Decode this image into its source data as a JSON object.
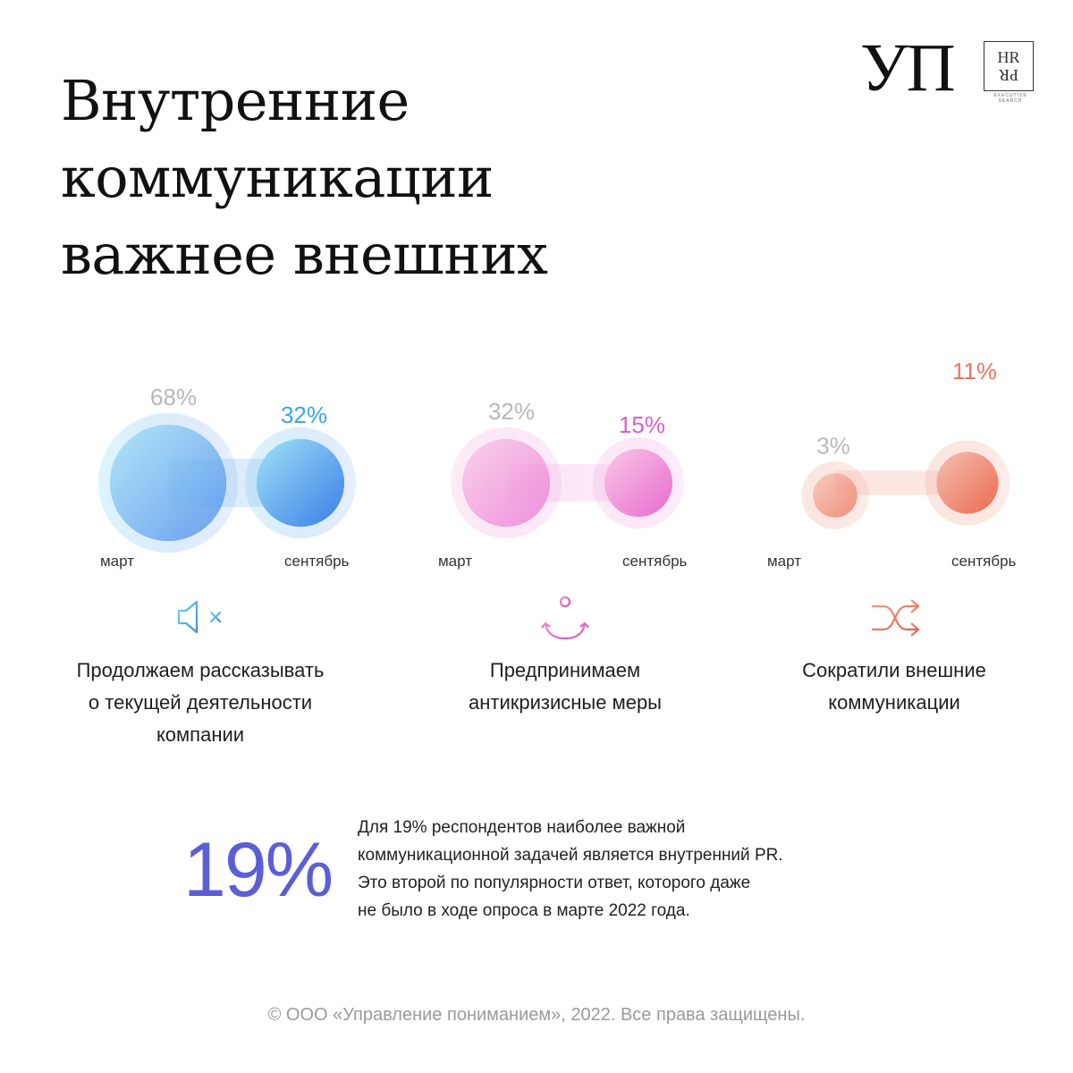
{
  "title": {
    "lines": [
      "Внутренние",
      "коммуникации",
      "важнее внешних"
    ]
  },
  "logo": {
    "brand": "УП",
    "partner_line1": "HR",
    "partner_line2": "PR",
    "partner_sub": "EXECUTIVE SEARCH"
  },
  "chart_data": {
    "type": "bubble-comparison",
    "periods": [
      "март",
      "сентябрь"
    ],
    "series": [
      {
        "name": "Продолжаем рассказывать о текущей деятельности компании",
        "values": [
          68,
          32
        ],
        "labels": [
          "68%",
          "32%"
        ],
        "color_from": "#9fe3f7",
        "color_to": "#3a7de8",
        "label_color": "#3aa4e8"
      },
      {
        "name": "Предпринимаем антикризисные меры",
        "values": [
          32,
          15
        ],
        "labels": [
          "32%",
          "15%"
        ],
        "color_from": "#f9c8e6",
        "color_to": "#e86ad0",
        "label_color": "#d95fd0"
      },
      {
        "name": "Сократили внешние коммуникации",
        "values": [
          3,
          11
        ],
        "labels": [
          "3%",
          "11%"
        ],
        "color_from": "#f4c0b4",
        "color_to": "#ec6a4e",
        "label_color": "#e8765c"
      }
    ]
  },
  "icons": [
    "muted-speaker-icon",
    "anchor-icon",
    "shuffle-icon"
  ],
  "captions": [
    [
      "Продолжаем рассказывать",
      "о текущей деятельности",
      "компании"
    ],
    [
      "Предпринимаем",
      "антикризисные меры"
    ],
    [
      "Сократили внешние",
      "коммуникации"
    ]
  ],
  "highlight": {
    "value": "19%",
    "color": "#5b5ed6",
    "text_lines": [
      "Для 19% респондентов наиболее важной",
      "коммуникационной задачей является внутренний PR.",
      "Это второй по популярности ответ, которого даже",
      "не было в ходе опроса в марте 2022 года."
    ]
  },
  "footer": "© ООО «Управление пониманием», 2022. Все права защищены."
}
